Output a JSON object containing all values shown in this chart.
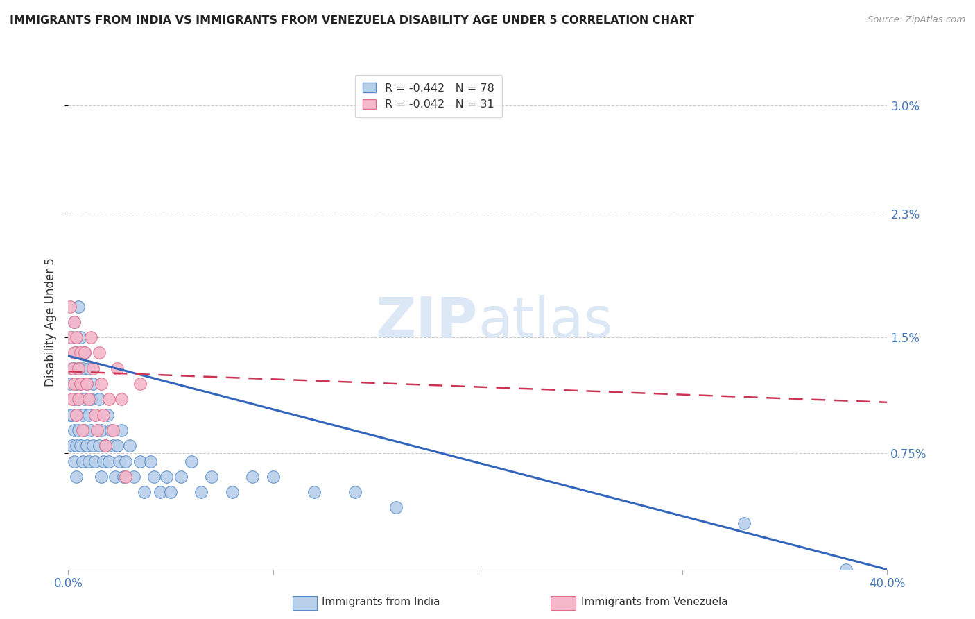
{
  "title": "IMMIGRANTS FROM INDIA VS IMMIGRANTS FROM VENEZUELA DISABILITY AGE UNDER 5 CORRELATION CHART",
  "source": "Source: ZipAtlas.com",
  "ylabel": "Disability Age Under 5",
  "xlim": [
    0.0,
    0.4
  ],
  "ylim": [
    0.0,
    0.032
  ],
  "ytick_values": [
    0.0075,
    0.015,
    0.023,
    0.03
  ],
  "ytick_labels": [
    "0.75%",
    "1.5%",
    "2.3%",
    "3.0%"
  ],
  "xtick_values": [
    0.0,
    0.4
  ],
  "xtick_labels": [
    "0.0%",
    "40.0%"
  ],
  "legend_india": "R = -0.442   N = 78",
  "legend_venezuela": "R = -0.042   N = 31",
  "india_color": "#b8d0ea",
  "india_edge": "#5b8ec9",
  "venezuela_color": "#f5b8cb",
  "venezuela_edge": "#e0708a",
  "trendline_india_color": "#3366bb",
  "trendline_venezuela_color": "#cc3355",
  "watermark_color": "#dce8f5",
  "india_trend_x": [
    0.0,
    0.4
  ],
  "india_trend_y": [
    0.0138,
    0.0
  ],
  "venezuela_trend_x": [
    0.0,
    0.4
  ],
  "venezuela_trend_y": [
    0.0128,
    0.0108
  ],
  "india_x": [
    0.001,
    0.001,
    0.002,
    0.002,
    0.002,
    0.002,
    0.003,
    0.003,
    0.003,
    0.003,
    0.003,
    0.004,
    0.004,
    0.004,
    0.004,
    0.004,
    0.005,
    0.005,
    0.005,
    0.005,
    0.006,
    0.006,
    0.006,
    0.007,
    0.007,
    0.007,
    0.008,
    0.008,
    0.008,
    0.009,
    0.009,
    0.01,
    0.01,
    0.01,
    0.011,
    0.011,
    0.012,
    0.012,
    0.013,
    0.013,
    0.014,
    0.015,
    0.015,
    0.016,
    0.016,
    0.017,
    0.018,
    0.019,
    0.02,
    0.021,
    0.022,
    0.023,
    0.024,
    0.025,
    0.026,
    0.027,
    0.028,
    0.03,
    0.032,
    0.035,
    0.037,
    0.04,
    0.042,
    0.045,
    0.048,
    0.05,
    0.055,
    0.06,
    0.065,
    0.07,
    0.08,
    0.09,
    0.1,
    0.12,
    0.14,
    0.16,
    0.33,
    0.38
  ],
  "india_y": [
    0.012,
    0.01,
    0.013,
    0.008,
    0.01,
    0.015,
    0.009,
    0.011,
    0.013,
    0.007,
    0.016,
    0.008,
    0.01,
    0.012,
    0.014,
    0.006,
    0.009,
    0.011,
    0.013,
    0.017,
    0.008,
    0.012,
    0.015,
    0.007,
    0.01,
    0.013,
    0.009,
    0.011,
    0.014,
    0.008,
    0.012,
    0.007,
    0.01,
    0.013,
    0.009,
    0.011,
    0.008,
    0.012,
    0.007,
    0.01,
    0.009,
    0.008,
    0.011,
    0.006,
    0.009,
    0.007,
    0.008,
    0.01,
    0.007,
    0.009,
    0.008,
    0.006,
    0.008,
    0.007,
    0.009,
    0.006,
    0.007,
    0.008,
    0.006,
    0.007,
    0.005,
    0.007,
    0.006,
    0.005,
    0.006,
    0.005,
    0.006,
    0.007,
    0.005,
    0.006,
    0.005,
    0.006,
    0.006,
    0.005,
    0.005,
    0.004,
    0.003,
    0.0
  ],
  "venezuela_x": [
    0.001,
    0.001,
    0.002,
    0.002,
    0.003,
    0.003,
    0.003,
    0.004,
    0.004,
    0.005,
    0.005,
    0.006,
    0.006,
    0.007,
    0.008,
    0.009,
    0.01,
    0.011,
    0.012,
    0.013,
    0.014,
    0.015,
    0.016,
    0.017,
    0.018,
    0.02,
    0.022,
    0.024,
    0.026,
    0.028,
    0.035
  ],
  "venezuela_y": [
    0.015,
    0.017,
    0.013,
    0.011,
    0.016,
    0.014,
    0.012,
    0.015,
    0.01,
    0.013,
    0.011,
    0.014,
    0.012,
    0.009,
    0.014,
    0.012,
    0.011,
    0.015,
    0.013,
    0.01,
    0.009,
    0.014,
    0.012,
    0.01,
    0.008,
    0.011,
    0.009,
    0.013,
    0.011,
    0.006,
    0.012
  ]
}
